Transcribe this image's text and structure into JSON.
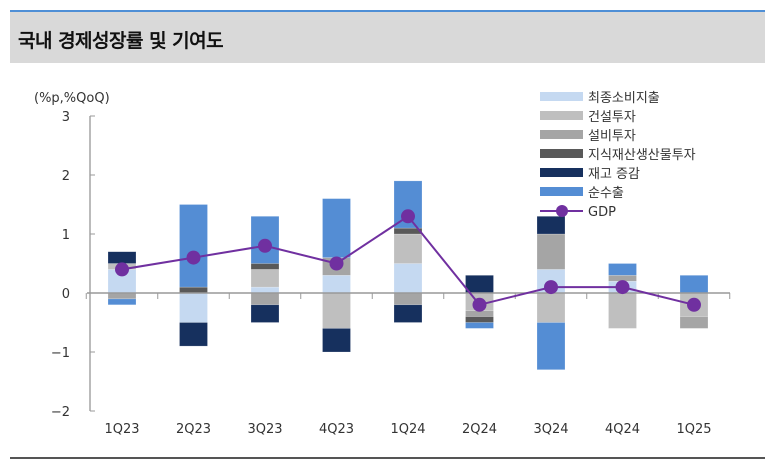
{
  "header": {
    "title": "국내 경제성장률 및 기여도"
  },
  "chart_data": {
    "type": "bar",
    "stacked": true,
    "ylabel": "(%p,%QoQ)",
    "ylim": [
      -2,
      3
    ],
    "yticks": [
      3,
      2,
      1,
      0,
      -1,
      -2
    ],
    "ytick_labels": [
      "3",
      "2",
      "1",
      "0",
      "−1",
      "−2"
    ],
    "categories": [
      "1Q23",
      "2Q23",
      "3Q23",
      "4Q23",
      "1Q24",
      "2Q24",
      "3Q24",
      "4Q24",
      "1Q25"
    ],
    "legend_position": "top-right",
    "grid": false,
    "series": [
      {
        "name": "최종소비지출",
        "color": "#c5d9f1",
        "values": [
          0.4,
          -0.5,
          0.1,
          0.3,
          0.5,
          0.0,
          0.4,
          0.2,
          0.0
        ]
      },
      {
        "name": "건설투자",
        "color": "#bfbfbf",
        "values": [
          0.1,
          0.0,
          0.3,
          -0.6,
          0.5,
          -0.3,
          -0.5,
          -0.6,
          -0.4
        ]
      },
      {
        "name": "설비투자",
        "color": "#a5a5a5",
        "values": [
          -0.1,
          0.0,
          -0.2,
          0.3,
          -0.2,
          -0.1,
          0.6,
          0.1,
          -0.2
        ]
      },
      {
        "name": "지식재산생산물투자",
        "color": "#595959",
        "values": [
          0.0,
          0.1,
          0.1,
          0.0,
          0.1,
          -0.1,
          0.0,
          0.0,
          0.0
        ]
      },
      {
        "name": "재고 증감",
        "color": "#16305e",
        "values": [
          0.2,
          -0.4,
          -0.3,
          -0.4,
          -0.3,
          0.3,
          0.3,
          0.0,
          0.0
        ]
      },
      {
        "name": "순수출",
        "color": "#548dd4",
        "values": [
          -0.1,
          1.4,
          0.8,
          1.0,
          0.8,
          -0.1,
          -0.8,
          0.2,
          0.3
        ]
      }
    ],
    "line": {
      "name": "GDP",
      "color": "#7030a0",
      "values": [
        0.4,
        0.6,
        0.8,
        0.5,
        1.3,
        -0.2,
        0.1,
        0.1,
        -0.2
      ]
    }
  }
}
